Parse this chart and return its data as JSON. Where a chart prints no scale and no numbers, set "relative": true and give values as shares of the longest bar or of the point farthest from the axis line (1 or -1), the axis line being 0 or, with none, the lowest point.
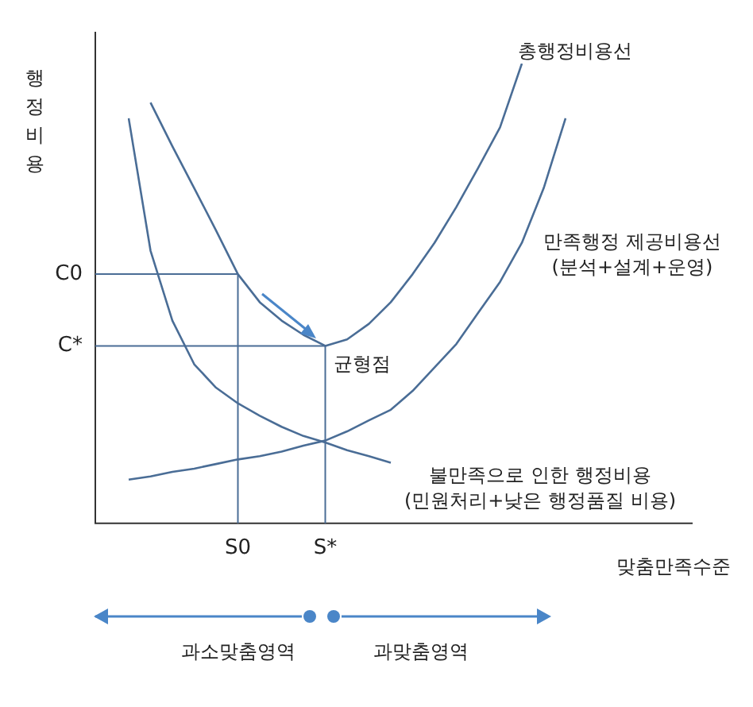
{
  "chart_data": {
    "type": "line",
    "relative": true,
    "xlabel": "맞춤만족수준",
    "ylabel": "행정비용",
    "line_style": "solid",
    "categories": [
      null,
      null,
      null,
      null,
      null,
      "S0",
      null,
      null,
      null,
      "S*",
      null,
      null,
      null,
      null,
      null,
      null,
      null,
      null,
      null,
      null,
      null
    ],
    "series": [
      {
        "color": "#4a6d96",
        "values": [
          null,
          0.915,
          0.82,
          0.729,
          0.637,
          0.542,
          0.481,
          0.441,
          0.41,
          0.386,
          0.4,
          0.434,
          0.481,
          0.542,
          0.61,
          0.688,
          0.773,
          0.861,
          1,
          null,
          null
        ]
      },
      {
        "color": "#4a6d96",
        "values": [
          0.095,
          0.102,
          0.112,
          0.119,
          0.129,
          0.139,
          0.146,
          0.156,
          0.169,
          0.18,
          0.2,
          0.224,
          0.247,
          0.288,
          0.339,
          0.39,
          0.458,
          0.525,
          0.61,
          0.729,
          0.881
        ]
      },
      {
        "color": "#4a6d96",
        "values": [
          0.881,
          0.593,
          0.441,
          0.346,
          0.295,
          0.261,
          0.234,
          0.21,
          0.19,
          0.176,
          0.159,
          0.146,
          0.132,
          null,
          null,
          null,
          null,
          null,
          null,
          null,
          null
        ]
      }
    ],
    "ref_lines": [
      {
        "axis": "x",
        "value": "S0",
        "color": "#4a6d96"
      },
      {
        "axis": "x",
        "value": "S*",
        "color": "#4a6d96"
      },
      {
        "axis": "y",
        "value": 0.542,
        "label": "C0",
        "color": "#4a6d96"
      },
      {
        "axis": "y",
        "value": 0.386,
        "label": "C*",
        "color": "#4a6d96"
      }
    ],
    "annotations": [
      "총행정비용선",
      "만족행정 제공비용선\n(분석+설계+운영)",
      {
        "text": "균형점",
        "x": "S*",
        "y": 0.386
      },
      "불만족으로 인한 행정비용\n(민원처리+낮은 행정품질 비용)",
      "과소맞춤영역",
      "과맞춤영역"
    ]
  }
}
